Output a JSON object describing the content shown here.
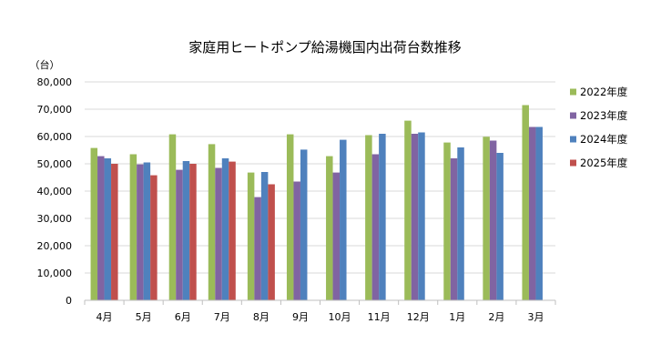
{
  "chart_data": {
    "type": "bar",
    "title": "家庭用ヒートポンプ給湯機国内出荷台数推移",
    "ylabel": "（台）",
    "xlabel": "",
    "ylim": [
      0,
      80000
    ],
    "ytick_step": 10000,
    "grid": true,
    "legend_position": "right",
    "categories": [
      "4月",
      "5月",
      "6月",
      "7月",
      "8月",
      "9月",
      "10月",
      "11月",
      "12月",
      "1月",
      "2月",
      "3月"
    ],
    "series": [
      {
        "name": "2022年度",
        "color": "#9BBB59",
        "values": [
          55800,
          53500,
          60800,
          57200,
          46800,
          60800,
          52800,
          60500,
          65800,
          57800,
          59900,
          71500
        ]
      },
      {
        "name": "2023年度",
        "color": "#8064A2",
        "values": [
          52800,
          49800,
          47800,
          48500,
          37800,
          43500,
          46800,
          53500,
          61000,
          52000,
          58500,
          63500
        ]
      },
      {
        "name": "2024年度",
        "color": "#4F81BD",
        "values": [
          52000,
          50500,
          51000,
          52000,
          47000,
          55200,
          58800,
          61000,
          61500,
          56000,
          54000,
          63500
        ]
      },
      {
        "name": "2025年度",
        "color": "#C0504D",
        "values": [
          50000,
          45800,
          50000,
          50800,
          42500,
          null,
          null,
          null,
          null,
          null,
          null,
          null
        ]
      }
    ]
  }
}
